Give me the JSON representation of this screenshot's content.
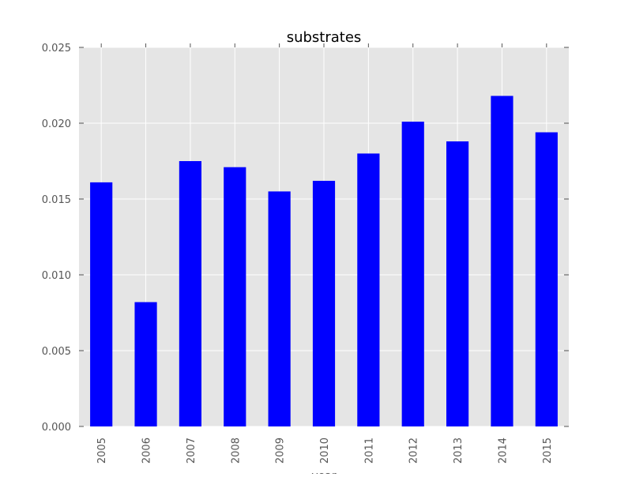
{
  "chart_data": {
    "type": "bar",
    "title": "substrates",
    "xlabel": "year",
    "ylabel": "",
    "categories": [
      "2005",
      "2006",
      "2007",
      "2008",
      "2009",
      "2010",
      "2011",
      "2012",
      "2013",
      "2014",
      "2015"
    ],
    "series": [
      {
        "values": [
          0.0161,
          0.0082,
          0.0175,
          0.0171,
          0.0155,
          0.0162,
          0.018,
          0.0201,
          0.0188,
          0.0218,
          0.0194
        ],
        "color": "#0000ff"
      }
    ],
    "ylim": [
      0,
      0.025
    ],
    "yticks": [
      "0.000",
      "0.005",
      "0.010",
      "0.015",
      "0.020",
      "0.025"
    ],
    "grid": true,
    "legend": "none",
    "colors": {
      "plot_background": "#e5e5e5",
      "grid": "#ffffff",
      "bar": "#0000ff",
      "tick_label": "#555555",
      "title": "#000000"
    }
  }
}
